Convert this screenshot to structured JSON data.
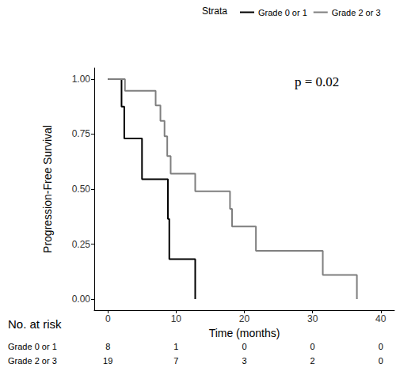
{
  "chart_data": {
    "type": "line",
    "line_style": "step",
    "legend": "top",
    "legend_title": "Strata",
    "annotations": [
      "p = 0.02"
    ],
    "xlabel": "Time (months)",
    "ylabel": "Progression-Free Survival",
    "xlim": [
      -2,
      42
    ],
    "xticks": [
      0,
      10,
      20,
      30,
      40
    ],
    "ylim": [
      -0.05,
      1.05
    ],
    "yticks": [
      {
        "value": 0,
        "label": "0.00"
      },
      {
        "value": 0.25,
        "label": "0.25"
      },
      {
        "value": 0.5,
        "label": "0.50"
      },
      {
        "value": 0.75,
        "label": "0.75"
      },
      {
        "value": 1,
        "label": "1.00"
      }
    ],
    "grid": false,
    "series": [
      {
        "name": "Grade 0 or 1",
        "color": "#000000",
        "x": [
          0,
          2,
          2.4,
          5,
          8.8,
          9,
          12.8
        ],
        "values": [
          1,
          0.875,
          0.73,
          0.545,
          0.364,
          0.182,
          0
        ]
      },
      {
        "name": "Grade 2 or 3",
        "color": "#7f7f7f",
        "x": [
          0,
          2.5,
          7,
          7.7,
          8.3,
          8.7,
          9.2,
          12.8,
          17.9,
          18.2,
          21.7,
          31.5,
          36.5
        ],
        "values": [
          1,
          0.947,
          0.88,
          0.81,
          0.74,
          0.65,
          0.57,
          0.49,
          0.41,
          0.33,
          0.22,
          0.11,
          0
        ]
      }
    ],
    "risk_table": {
      "title": "No. at risk",
      "times": [
        0,
        10,
        20,
        30,
        40
      ],
      "rows": [
        {
          "name": "Grade 0 or 1",
          "values": [
            8,
            1,
            0,
            0,
            0
          ]
        },
        {
          "name": "Grade 2 or 3",
          "values": [
            19,
            7,
            3,
            2,
            0
          ]
        }
      ]
    }
  }
}
